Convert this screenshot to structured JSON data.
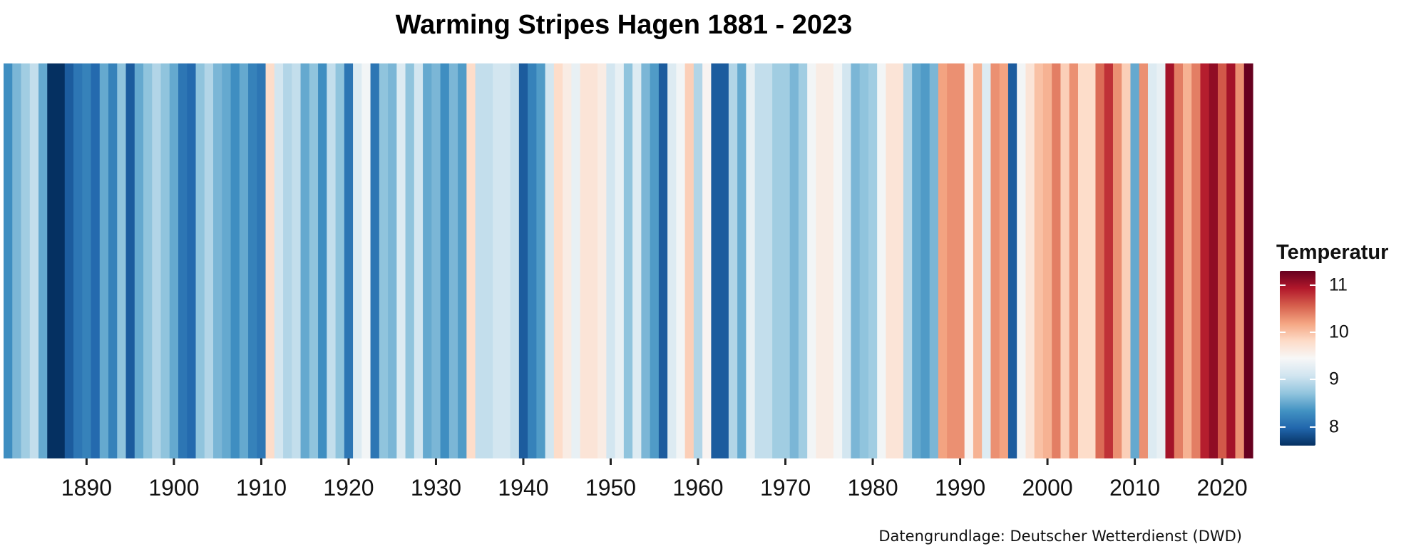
{
  "chart_data": {
    "type": "heatmap",
    "title": "Warming Stripes Hagen 1881 - 2023",
    "caption": "Datengrundlage: Deutscher Wetterdienst (DWD)",
    "x_range": [
      1881,
      2023
    ],
    "x_ticks": [
      1890,
      1900,
      1910,
      1920,
      1930,
      1940,
      1950,
      1960,
      1970,
      1980,
      1990,
      2000,
      2010,
      2020
    ],
    "legend": {
      "title": "Temperatur",
      "ticks": [
        "8",
        "9",
        "10",
        "11"
      ],
      "range": [
        7.6,
        11.3
      ],
      "placement": "right"
    },
    "colors": {
      "scale": [
        "#053061",
        "#2166ac",
        "#4393c3",
        "#92c5de",
        "#d1e5f0",
        "#f7f7f7",
        "#fddbc7",
        "#f4a582",
        "#d6604d",
        "#b2182b",
        "#67001f"
      ]
    },
    "years": [
      1881,
      1882,
      1883,
      1884,
      1885,
      1886,
      1887,
      1888,
      1889,
      1890,
      1891,
      1892,
      1893,
      1894,
      1895,
      1896,
      1897,
      1898,
      1899,
      1900,
      1901,
      1902,
      1903,
      1904,
      1905,
      1906,
      1907,
      1908,
      1909,
      1910,
      1911,
      1912,
      1913,
      1914,
      1915,
      1916,
      1917,
      1918,
      1919,
      1920,
      1921,
      1922,
      1923,
      1924,
      1925,
      1926,
      1927,
      1928,
      1929,
      1930,
      1931,
      1932,
      1933,
      1934,
      1935,
      1936,
      1937,
      1938,
      1939,
      1940,
      1941,
      1942,
      1943,
      1944,
      1945,
      1946,
      1947,
      1948,
      1949,
      1950,
      1951,
      1952,
      1953,
      1954,
      1955,
      1956,
      1957,
      1958,
      1959,
      1960,
      1961,
      1962,
      1963,
      1964,
      1965,
      1966,
      1967,
      1968,
      1969,
      1970,
      1971,
      1972,
      1973,
      1974,
      1975,
      1976,
      1977,
      1978,
      1979,
      1980,
      1981,
      1982,
      1983,
      1984,
      1985,
      1986,
      1987,
      1988,
      1989,
      1990,
      1991,
      1992,
      1993,
      1994,
      1995,
      1996,
      1997,
      1998,
      1999,
      2000,
      2001,
      2002,
      2003,
      2004,
      2005,
      2006,
      2007,
      2008,
      2009,
      2010,
      2011,
      2012,
      2013,
      2014,
      2015,
      2016,
      2017,
      2018,
      2019,
      2020,
      2021,
      2022,
      2023
    ],
    "values": [
      8.3,
      8.6,
      8.8,
      9.0,
      8.5,
      7.6,
      7.6,
      7.9,
      8.1,
      8.2,
      8.0,
      8.5,
      8.2,
      8.7,
      7.9,
      8.5,
      8.7,
      8.9,
      8.7,
      8.5,
      8.1,
      8.0,
      8.7,
      8.9,
      8.6,
      8.5,
      8.3,
      8.5,
      8.2,
      8.1,
      9.8,
      9.1,
      8.9,
      9.0,
      8.5,
      8.7,
      8.3,
      9.0,
      8.7,
      8.1,
      9.2,
      9.4,
      8.1,
      8.7,
      8.6,
      9.2,
      8.7,
      9.1,
      8.5,
      8.6,
      8.3,
      8.6,
      8.4,
      9.8,
      9.0,
      9.0,
      9.1,
      9.1,
      9.0,
      7.9,
      8.2,
      8.4,
      9.1,
      9.8,
      9.6,
      9.3,
      9.7,
      9.7,
      9.6,
      9.1,
      9.3,
      8.7,
      9.2,
      8.6,
      8.4,
      7.9,
      9.2,
      9.4,
      9.9,
      8.9,
      9.5,
      7.9,
      7.9,
      8.9,
      8.5,
      9.3,
      9.0,
      9.0,
      8.8,
      8.8,
      8.6,
      8.8,
      9.4,
      9.6,
      9.6,
      9.4,
      9.1,
      8.6,
      8.7,
      8.8,
      9.4,
      9.7,
      9.7,
      8.9,
      8.5,
      8.4,
      8.6,
      10.2,
      10.3,
      10.3,
      9.5,
      10.1,
      9.2,
      10.3,
      10.2,
      7.9,
      9.4,
      9.7,
      10.0,
      10.1,
      10.4,
      9.9,
      10.3,
      9.8,
      9.8,
      10.5,
      10.8,
      10.3,
      9.9,
      8.5,
      10.3,
      9.2,
      9.3,
      11.0,
      10.4,
      10.1,
      10.4,
      10.9,
      11.1,
      10.6,
      11.0,
      10.3,
      11.3
    ]
  }
}
